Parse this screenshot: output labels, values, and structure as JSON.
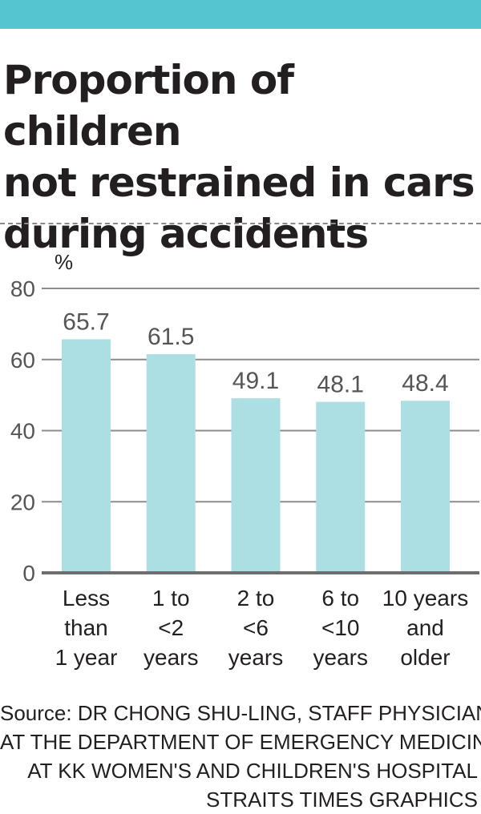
{
  "header": {
    "title_lines": [
      "Proportion of children",
      "not restrained in cars",
      "during accidents"
    ]
  },
  "colors": {
    "top_bar": "#55c6d0",
    "bar": "#acdfe3",
    "gridline": "#8c8c8c",
    "text": "#231f20"
  },
  "chart_data": {
    "type": "bar",
    "title": "Proportion of children not restrained in cars during accidents",
    "ylabel": "%",
    "xlabel": "",
    "ylim": [
      0,
      80
    ],
    "yticks": [
      0,
      20,
      40,
      60,
      80
    ],
    "grid": true,
    "categories": [
      [
        "Less",
        "than",
        "1 year"
      ],
      [
        "1 to",
        "<2",
        "years"
      ],
      [
        "2 to",
        "<6",
        "years"
      ],
      [
        "6 to",
        "<10",
        "years"
      ],
      [
        "10 years",
        "and",
        "older"
      ]
    ],
    "values": [
      65.7,
      61.5,
      49.1,
      48.1,
      48.4
    ],
    "value_labels": [
      "65.7",
      "61.5",
      "49.1",
      "48.1",
      "48.4"
    ]
  },
  "footer": {
    "source_lines": [
      "Source: DR CHONG SHU-LING, STAFF PHYSICIAN",
      "AT THE DEPARTMENT OF EMERGENCY MEDICINE",
      "AT KK WOMEN'S AND CHILDREN'S HOSPITAL",
      "STRAITS TIMES GRAPHICS"
    ]
  }
}
